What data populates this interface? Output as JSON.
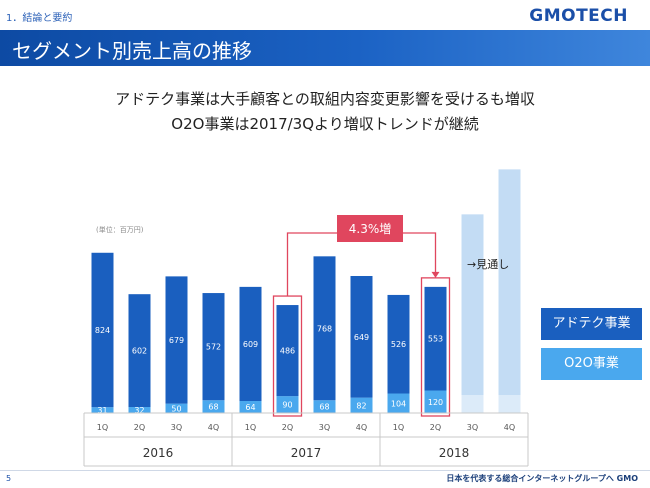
{
  "header": {
    "section": "1．結論と要約",
    "logo": "GMOTECH",
    "title": "セグメント別売上高の推移"
  },
  "subtitle": {
    "line1": "アドテク事業は大手顧客との取組内容変更影響を受けるも増収",
    "line2": "O2O事業は2017/3Qより増収トレンドが継続"
  },
  "chart_data": {
    "type": "bar",
    "stacked": true,
    "unit_label": "(単位：百万円)",
    "categories": [
      "1Q",
      "2Q",
      "3Q",
      "4Q",
      "1Q",
      "2Q",
      "3Q",
      "4Q",
      "1Q",
      "2Q",
      "3Q",
      "4Q"
    ],
    "years": [
      "2016",
      "2017",
      "2018"
    ],
    "series": [
      {
        "name": "O2O事業",
        "values": [
          31,
          32,
          50,
          68,
          64,
          90,
          68,
          82,
          104,
          120,
          null,
          null
        ]
      },
      {
        "name": "アドテク事業",
        "values": [
          824,
          602,
          679,
          572,
          609,
          486,
          768,
          649,
          526,
          553,
          null,
          null
        ]
      }
    ],
    "forecast": {
      "label": "→見通し",
      "totals": [
        1060,
        1300
      ]
    },
    "annotation": {
      "label": "4.3%増",
      "from_index": 5,
      "to_index": 9
    },
    "ylim": [
      0,
      1350
    ],
    "colors": {
      "adtech": "#1a5fbf",
      "o2o": "#4aa8ee",
      "forecast_adtech": "#c3dcf4",
      "forecast_o2o": "#dcebf9",
      "annotation": "#e0465e"
    }
  },
  "legend": {
    "adtech": "アドテク事業",
    "o2o": "O2O事業"
  },
  "footer": {
    "page": "5",
    "tagline": "日本を代表する総合インターネットグループへ GMO"
  }
}
